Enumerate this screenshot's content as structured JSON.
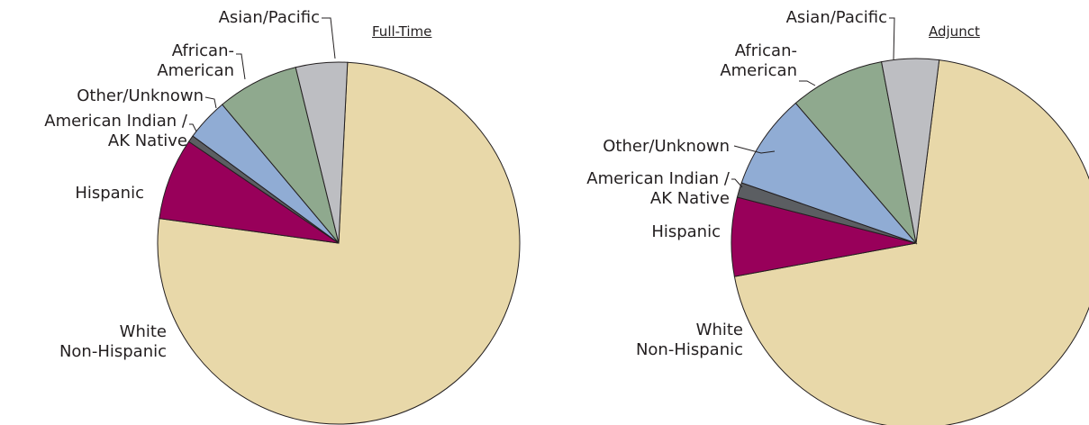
{
  "chart_data": [
    {
      "type": "pie",
      "title": "Full-Time",
      "categories": [
        "White\nNon-Hispanic",
        "Hispanic",
        "American Indian /\nAK Native",
        "Other/Unknown",
        "African-\nAmerican",
        "Asian/Pacific"
      ],
      "values": [
        76.4,
        7.3,
        0.6,
        3.8,
        7.3,
        4.6
      ],
      "colors": [
        "#e8d8a9",
        "#98005a",
        "#5b5e62",
        "#90acd4",
        "#8fa98e",
        "#bdbec2"
      ]
    },
    {
      "type": "pie",
      "title": "Adjunct",
      "categories": [
        "White\nNon-Hispanic",
        "Hispanic",
        "American Indian /\nAK Native",
        "Other/Unknown",
        "African-\nAmerican",
        "Asian/Pacific"
      ],
      "values": [
        70.1,
        6.9,
        1.3,
        8.4,
        8.3,
        5.0
      ],
      "colors": [
        "#e8d8a9",
        "#98005a",
        "#5b5e62",
        "#90acd4",
        "#8fa98e",
        "#bdbec2"
      ]
    }
  ]
}
